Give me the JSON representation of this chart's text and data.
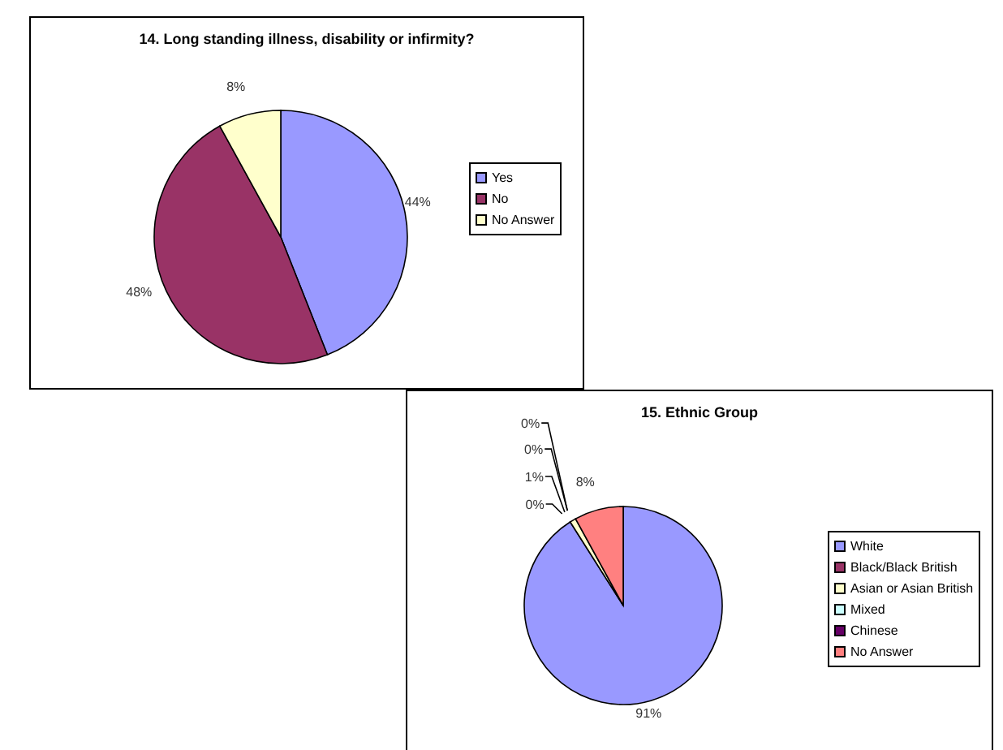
{
  "chart_data": [
    {
      "type": "pie",
      "title": "14.  Long standing illness, disability or infirmity?",
      "categories": [
        "Yes",
        "No",
        "No Answer"
      ],
      "values": [
        44,
        48,
        8
      ],
      "colors": [
        "#9999ff",
        "#993366",
        "#ffffcc"
      ],
      "value_labels": [
        "44%",
        "48%",
        "8%"
      ],
      "legend": "right"
    },
    {
      "type": "pie",
      "title": "15.  Ethnic Group",
      "categories": [
        "White",
        "Black/Black British",
        "Asian or Asian British",
        "Mixed",
        "Chinese",
        "No Answer"
      ],
      "values": [
        91,
        0,
        1,
        0,
        0,
        8
      ],
      "colors": [
        "#9999ff",
        "#993366",
        "#ffffcc",
        "#ccffff",
        "#660066",
        "#ff8080"
      ],
      "value_labels": [
        "91%",
        "0%",
        "1%",
        "0%",
        "0%",
        "8%"
      ],
      "legend": "right"
    }
  ]
}
